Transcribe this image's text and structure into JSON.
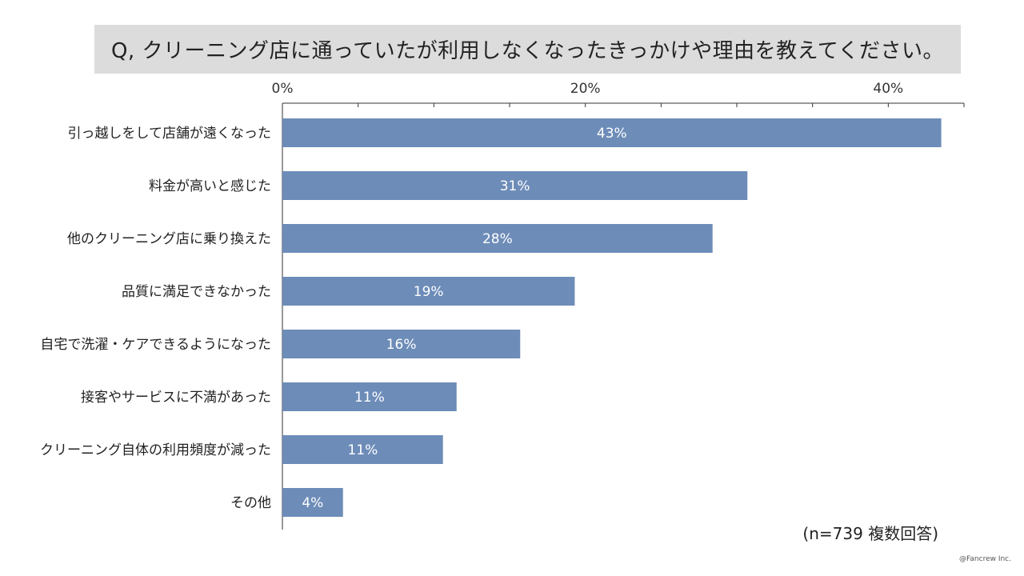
{
  "chart_data": {
    "type": "bar",
    "orientation": "horizontal",
    "title": "Q, クリーニング店に通っていたが利用しなくなったきっかけや理由を教えてください。",
    "categories": [
      "引っ越しをして店舗が遠くなった",
      "料金が高いと感じた",
      "他のクリーニング店に乗り換えた",
      "品質に満足できなかった",
      "自宅で洗濯・ケアできるようになった",
      "接客やサービスに不満があった",
      "クリーニング自体の利用頻度が減った",
      "その他"
    ],
    "values": [
      43,
      31,
      28,
      19,
      16,
      11,
      11,
      4
    ],
    "value_labels": [
      "43%",
      "31%",
      "28%",
      "19%",
      "16%",
      "11%",
      "11%",
      "4%"
    ],
    "raw_values": [
      43.5,
      30.7,
      28.4,
      19.3,
      15.7,
      11.5,
      10.6,
      4.0
    ],
    "xlim": [
      0,
      45
    ],
    "x_ticks": [
      0,
      20,
      40
    ],
    "x_tick_labels": [
      "0%",
      "20%",
      "40%"
    ],
    "minor_tick_step": 5,
    "axis_position": "top",
    "grid": false,
    "legend": "none",
    "bar_color": "#6d8cb8",
    "label_color": "#ffffff"
  },
  "note": "(n=739 複数回答)",
  "credit": "@Fancrew Inc."
}
